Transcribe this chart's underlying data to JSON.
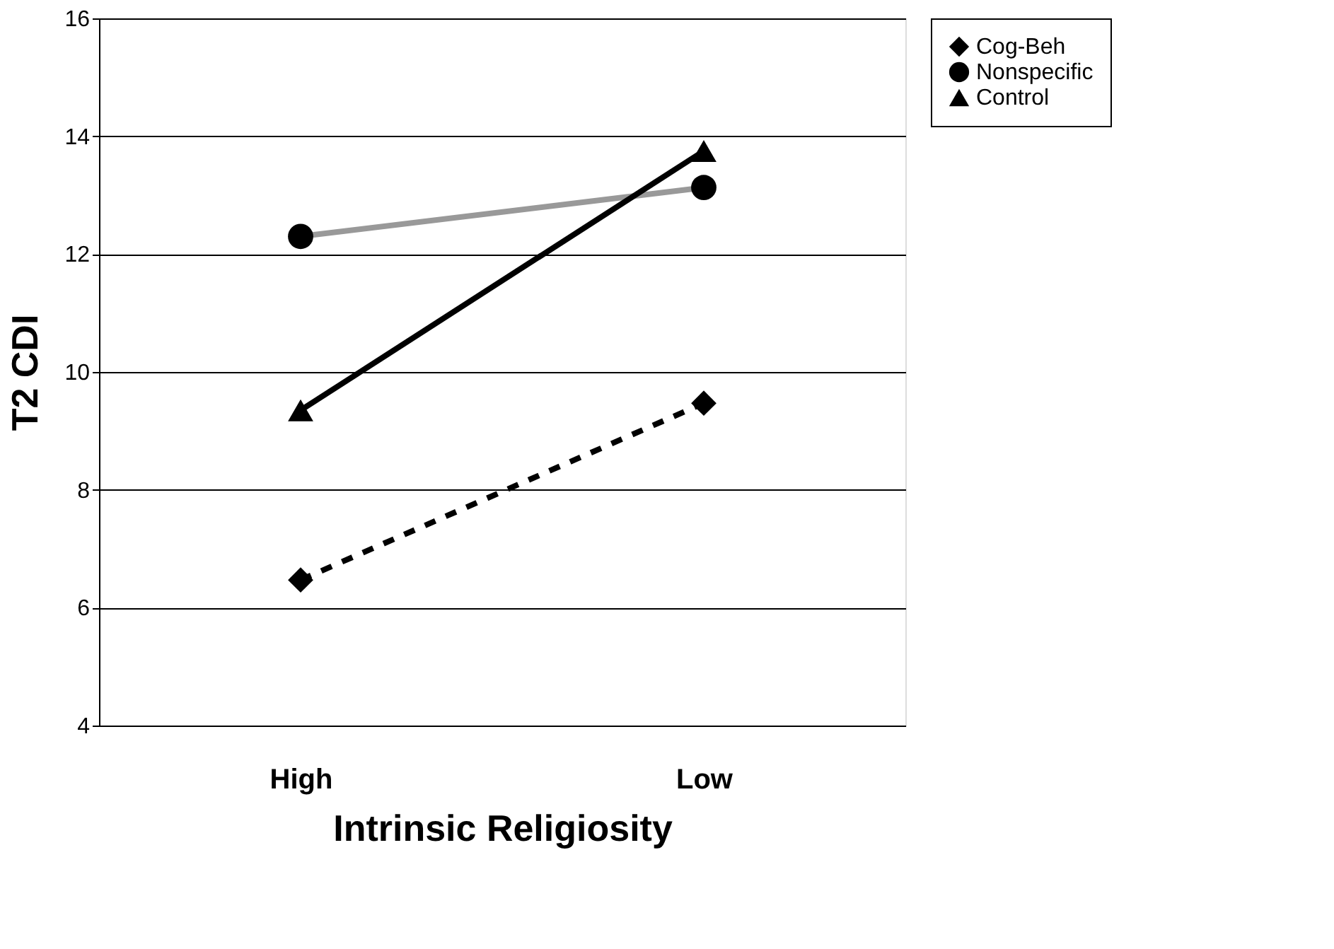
{
  "chart_data": {
    "type": "line",
    "xlabel": "Intrinsic Religiosity",
    "ylabel": "T2 CDI",
    "categories": [
      "High",
      "Low"
    ],
    "series": [
      {
        "name": "Cog-Beh",
        "color": "#000000",
        "values": [
          6.47,
          9.47
        ],
        "marker": "diamond",
        "line_style": "dashed"
      },
      {
        "name": "Nonspecific",
        "color": "#999999",
        "values": [
          12.3,
          13.13
        ],
        "marker": "circle",
        "line_style": "solid"
      },
      {
        "name": "Control",
        "color": "#000000",
        "values": [
          9.35,
          13.75
        ],
        "marker": "triangle",
        "line_style": "solid"
      }
    ],
    "ylim": [
      4,
      16
    ],
    "yticks": [
      4,
      6,
      8,
      10,
      12,
      14,
      16
    ],
    "grid": "y",
    "legend": "right"
  }
}
